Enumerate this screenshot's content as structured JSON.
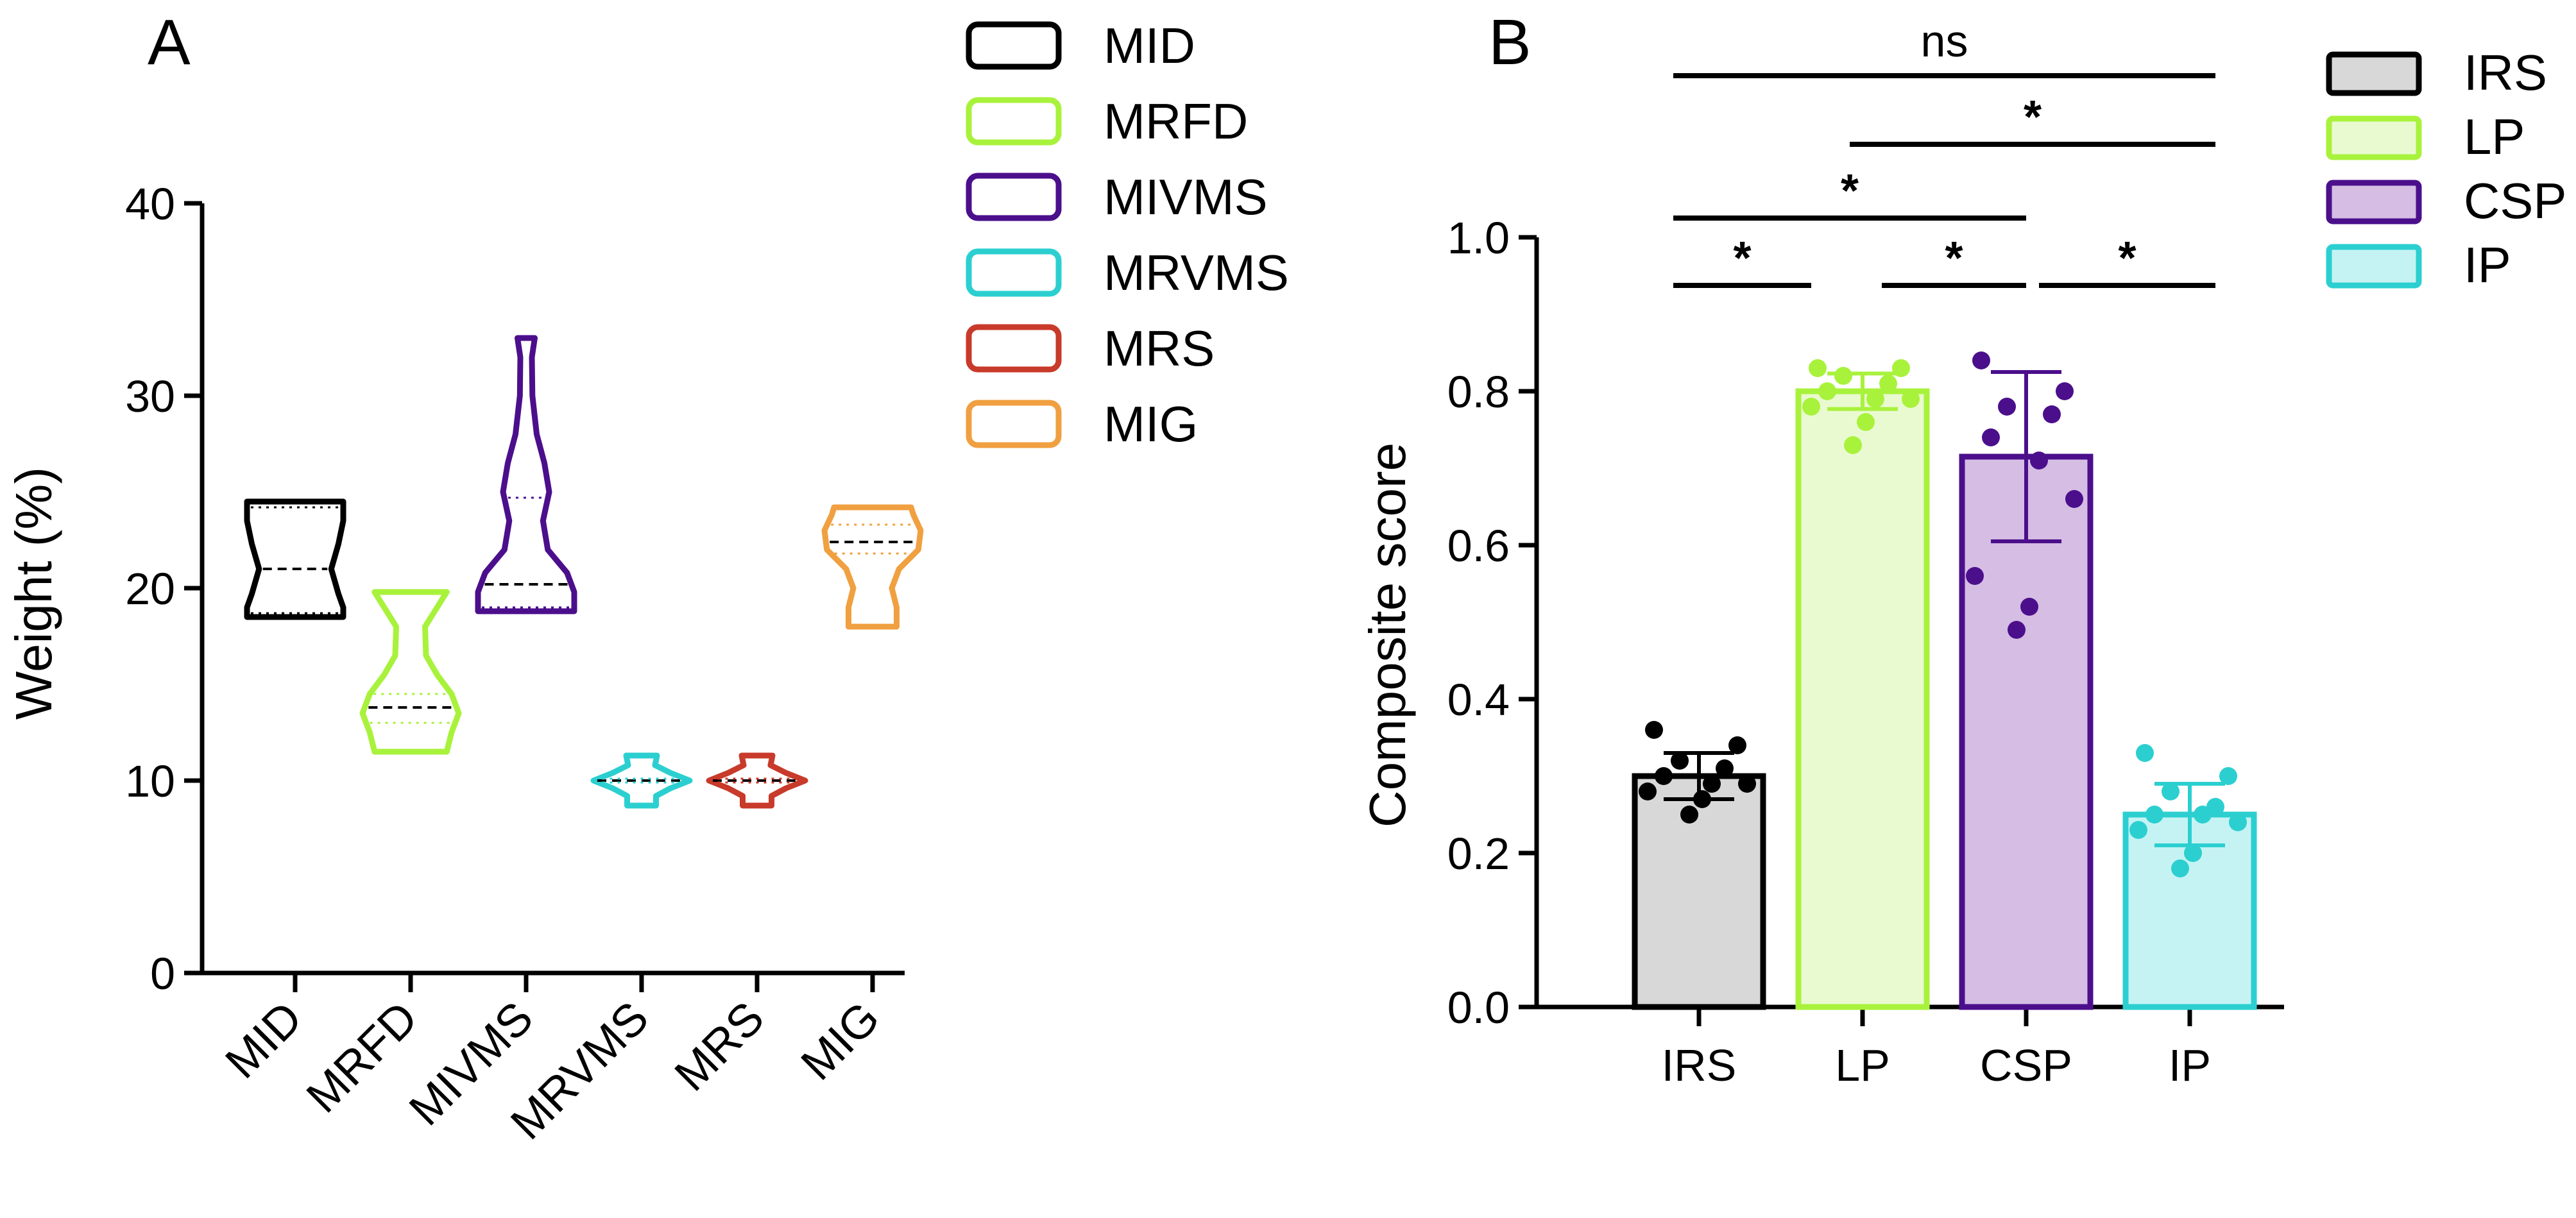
{
  "chart_data": [
    {
      "panel": "A",
      "type": "violin",
      "ylabel": "Weight (%)",
      "ylim": [
        0,
        40
      ],
      "yticks": [
        0,
        10,
        20,
        30,
        40
      ],
      "categories": [
        "MID",
        "MRFD",
        "MIVMS",
        "MRVMS",
        "MRS",
        "MIG"
      ],
      "legend": [
        "MID",
        "MRFD",
        "MIVMS",
        "MRVMS",
        "MRS",
        "MIG"
      ],
      "series": [
        {
          "name": "MID",
          "color": "#000000",
          "min": 18.5,
          "max": 24.5,
          "median": 21.0,
          "q1": 18.7,
          "q3": 24.2,
          "profile": [
            [
              18.5,
              1.0
            ],
            [
              19.0,
              1.0
            ],
            [
              19.7,
              0.9
            ],
            [
              21.0,
              0.75
            ],
            [
              22.3,
              0.9
            ],
            [
              23.5,
              1.0
            ],
            [
              24.5,
              1.0
            ]
          ]
        },
        {
          "name": "MRFD",
          "color": "#a8f23c",
          "min": 11.5,
          "max": 19.8,
          "median": 13.8,
          "q1": 13.0,
          "q3": 14.5,
          "profile": [
            [
              11.5,
              0.75
            ],
            [
              12.5,
              0.85
            ],
            [
              13.5,
              1.0
            ],
            [
              14.5,
              0.85
            ],
            [
              15.5,
              0.55
            ],
            [
              16.5,
              0.32
            ],
            [
              18.0,
              0.3
            ],
            [
              19.0,
              0.55
            ],
            [
              19.8,
              0.75
            ]
          ]
        },
        {
          "name": "MIVMS",
          "color": "#4b0f8c",
          "min": 18.8,
          "max": 33.0,
          "median": 20.2,
          "q1": 19.0,
          "q3": 24.7,
          "profile": [
            [
              18.8,
              1.0
            ],
            [
              19.8,
              1.0
            ],
            [
              20.8,
              0.85
            ],
            [
              22.0,
              0.45
            ],
            [
              23.5,
              0.35
            ],
            [
              25.0,
              0.48
            ],
            [
              26.5,
              0.38
            ],
            [
              28.0,
              0.22
            ],
            [
              30.0,
              0.13
            ],
            [
              32.0,
              0.12
            ],
            [
              33.0,
              0.18
            ]
          ]
        },
        {
          "name": "MRVMS",
          "color": "#2ccfd0",
          "min": 8.7,
          "max": 11.3,
          "median": 10.0,
          "q1": 9.9,
          "q3": 10.1,
          "profile": [
            [
              8.7,
              0.3
            ],
            [
              9.2,
              0.3
            ],
            [
              9.6,
              0.6
            ],
            [
              10.0,
              1.0
            ],
            [
              10.4,
              0.6
            ],
            [
              10.8,
              0.28
            ],
            [
              11.3,
              0.32
            ]
          ]
        },
        {
          "name": "MRS",
          "color": "#c83a2a",
          "min": 8.7,
          "max": 11.3,
          "median": 10.0,
          "q1": 9.9,
          "q3": 10.1,
          "profile": [
            [
              8.7,
              0.3
            ],
            [
              9.2,
              0.3
            ],
            [
              9.6,
              0.6
            ],
            [
              10.0,
              1.0
            ],
            [
              10.4,
              0.6
            ],
            [
              10.8,
              0.28
            ],
            [
              11.3,
              0.32
            ]
          ]
        },
        {
          "name": "MIG",
          "color": "#f0a040",
          "min": 18.0,
          "max": 24.2,
          "median": 22.4,
          "q1": 21.8,
          "q3": 23.3,
          "profile": [
            [
              18.0,
              0.5
            ],
            [
              19.0,
              0.5
            ],
            [
              20.0,
              0.4
            ],
            [
              21.0,
              0.55
            ],
            [
              22.0,
              0.95
            ],
            [
              23.0,
              1.0
            ],
            [
              23.8,
              0.85
            ],
            [
              24.2,
              0.8
            ]
          ]
        }
      ]
    },
    {
      "panel": "B",
      "type": "bar",
      "ylabel": "Composite score",
      "ylim": [
        0,
        1.0
      ],
      "yticks": [
        "0.0",
        "0.2",
        "0.4",
        "0.6",
        "0.8",
        "1.0"
      ],
      "categories": [
        "IRS",
        "LP",
        "CSP",
        "IP"
      ],
      "legend": [
        "IRS",
        "LP",
        "CSP",
        "IP"
      ],
      "series": [
        {
          "name": "IRS",
          "value": 0.3,
          "sd": 0.03,
          "fill": "#d8d8d8",
          "stroke": "#000000",
          "dot": "#000000",
          "points": [
            0.36,
            0.34,
            0.32,
            0.31,
            0.3,
            0.29,
            0.29,
            0.28,
            0.27,
            0.25
          ]
        },
        {
          "name": "LP",
          "value": 0.8,
          "sd": 0.023,
          "fill": "#eafad0",
          "stroke": "#a8f23c",
          "dot": "#a8f23c",
          "points": [
            0.83,
            0.83,
            0.82,
            0.81,
            0.8,
            0.79,
            0.79,
            0.78,
            0.76,
            0.73
          ]
        },
        {
          "name": "CSP",
          "value": 0.715,
          "sd": 0.11,
          "fill": "#d5bde3",
          "stroke": "#4b0f8c",
          "dot": "#4b0f8c",
          "points": [
            0.84,
            0.8,
            0.78,
            0.77,
            0.74,
            0.71,
            0.66,
            0.56,
            0.52,
            0.49
          ]
        },
        {
          "name": "IP",
          "value": 0.25,
          "sd": 0.04,
          "fill": "#c5f3f3",
          "stroke": "#2ccfd0",
          "dot": "#2ccfd0",
          "points": [
            0.33,
            0.3,
            0.28,
            0.26,
            0.25,
            0.25,
            0.24,
            0.23,
            0.2,
            0.18
          ]
        }
      ],
      "significance": [
        {
          "from": 0,
          "to": 3,
          "label": "ns",
          "level": 0
        },
        {
          "from": 1,
          "to": 3,
          "label": "*",
          "level": 1
        },
        {
          "from": 0,
          "to": 2,
          "label": "*",
          "level": 2
        },
        {
          "from": 0,
          "to": 1,
          "label": "*",
          "level": 3
        },
        {
          "from": 1,
          "to": 2,
          "label": "*",
          "level": 3
        },
        {
          "from": 2,
          "to": 3,
          "label": "*",
          "level": 3
        }
      ]
    }
  ]
}
